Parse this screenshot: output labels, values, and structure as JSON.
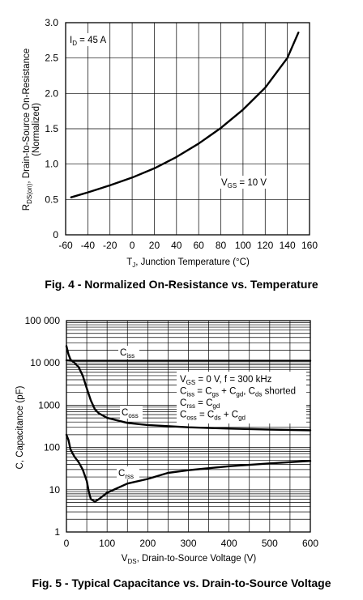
{
  "chart_data": [
    {
      "type": "line",
      "caption": "Fig. 4 - Normalized On-Resistance vs. Temperature",
      "xlabel_main": "T",
      "xlabel_sub": "J",
      "xlabel_rest": ", Junction Temperature (°C)",
      "ylabel_line1_main": "R",
      "ylabel_line1_sub": "DS(on)",
      "ylabel_line1_rest": ", Drain-to-Source On-Resistance",
      "ylabel_line2": "(Normalized)",
      "xlim": [
        -60,
        160
      ],
      "ylim": [
        0,
        3.0
      ],
      "xticks": [
        -60,
        -40,
        -20,
        0,
        20,
        40,
        60,
        80,
        100,
        120,
        140,
        160
      ],
      "yticks": [
        0,
        0.5,
        1.0,
        1.5,
        2.0,
        2.5,
        3.0
      ],
      "xtick_labels": [
        "-60",
        "-40",
        "-20",
        "0",
        "20",
        "40",
        "60",
        "80",
        "100",
        "120",
        "140",
        "160"
      ],
      "ytick_labels": [
        "0",
        "0.5",
        "1.0",
        "1.5",
        "2.0",
        "2.5",
        "3.0"
      ],
      "grid": true,
      "annotations": [
        {
          "main": "I",
          "sub": "D",
          "rest": " = 45 A"
        },
        {
          "main": "V",
          "sub": "GS",
          "rest": " = 10 V"
        }
      ],
      "series": [
        {
          "x": [
            -55,
            -40,
            -20,
            0,
            20,
            40,
            60,
            80,
            100,
            120,
            140,
            150
          ],
          "y": [
            0.53,
            0.6,
            0.7,
            0.81,
            0.94,
            1.1,
            1.29,
            1.51,
            1.77,
            2.08,
            2.5,
            2.86
          ]
        }
      ]
    },
    {
      "type": "line",
      "caption": "Fig. 5 - Typical Capacitance vs. Drain-to-Source Voltage",
      "xlabel_main": "V",
      "xlabel_sub": "DS",
      "xlabel_rest": ", Drain-to-Source Voltage (V)",
      "ylabel": "C, Capacitance (pF)",
      "yscale": "log",
      "xlim": [
        0,
        600
      ],
      "ylim": [
        1,
        100000
      ],
      "xticks": [
        0,
        100,
        200,
        300,
        400,
        500,
        600
      ],
      "yticks": [
        1,
        10,
        100,
        1000,
        10000,
        100000
      ],
      "xtick_labels": [
        "0",
        "100",
        "200",
        "300",
        "400",
        "500",
        "600"
      ],
      "ytick_labels": [
        "1",
        "10",
        "100",
        "1000",
        "10 000",
        "100 000"
      ],
      "grid": true,
      "legend_box": [
        {
          "parts": [
            [
              "V",
              ""
            ],
            [
              "GS",
              "sub"
            ],
            [
              " = 0 V, f = 300 kHz",
              ""
            ]
          ]
        },
        {
          "parts": [
            [
              "C",
              ""
            ],
            [
              "iss",
              "sub"
            ],
            [
              " = C",
              ""
            ],
            [
              "gs",
              "sub"
            ],
            [
              " + C",
              ""
            ],
            [
              "gd",
              "sub"
            ],
            [
              ", C",
              ""
            ],
            [
              "ds",
              "sub"
            ],
            [
              " shorted",
              ""
            ]
          ]
        },
        {
          "parts": [
            [
              "C",
              ""
            ],
            [
              "rss",
              "sub"
            ],
            [
              " = C",
              ""
            ],
            [
              "gd",
              "sub"
            ]
          ]
        },
        {
          "parts": [
            [
              "C",
              ""
            ],
            [
              "oss",
              "sub"
            ],
            [
              " = C",
              ""
            ],
            [
              "ds",
              "sub"
            ],
            [
              " + C",
              ""
            ],
            [
              "gd",
              "sub"
            ]
          ]
        }
      ],
      "series": [
        {
          "label_main": "C",
          "label_sub": "iss",
          "x": [
            0,
            5,
            10,
            20,
            40,
            100,
            200,
            300,
            400,
            500,
            600
          ],
          "y": [
            11500,
            11400,
            11300,
            11200,
            11200,
            11200,
            11200,
            11200,
            11200,
            11200,
            11200
          ]
        },
        {
          "label_main": "C",
          "label_sub": "oss",
          "x": [
            0,
            5,
            10,
            20,
            30,
            40,
            50,
            60,
            70,
            80,
            100,
            150,
            200,
            300,
            400,
            500,
            600
          ],
          "y": [
            25000,
            16000,
            12000,
            10000,
            8000,
            5000,
            2500,
            1300,
            800,
            640,
            500,
            380,
            340,
            300,
            280,
            265,
            255
          ]
        },
        {
          "label_main": "C",
          "label_sub": "rss",
          "x": [
            0,
            5,
            10,
            20,
            30,
            40,
            50,
            55,
            60,
            70,
            80,
            100,
            150,
            200,
            250,
            300,
            400,
            500,
            600
          ],
          "y": [
            200,
            150,
            90,
            60,
            45,
            30,
            16,
            9,
            6,
            5.2,
            6,
            8.5,
            14,
            18,
            25,
            29,
            36,
            42,
            48
          ]
        }
      ]
    }
  ]
}
